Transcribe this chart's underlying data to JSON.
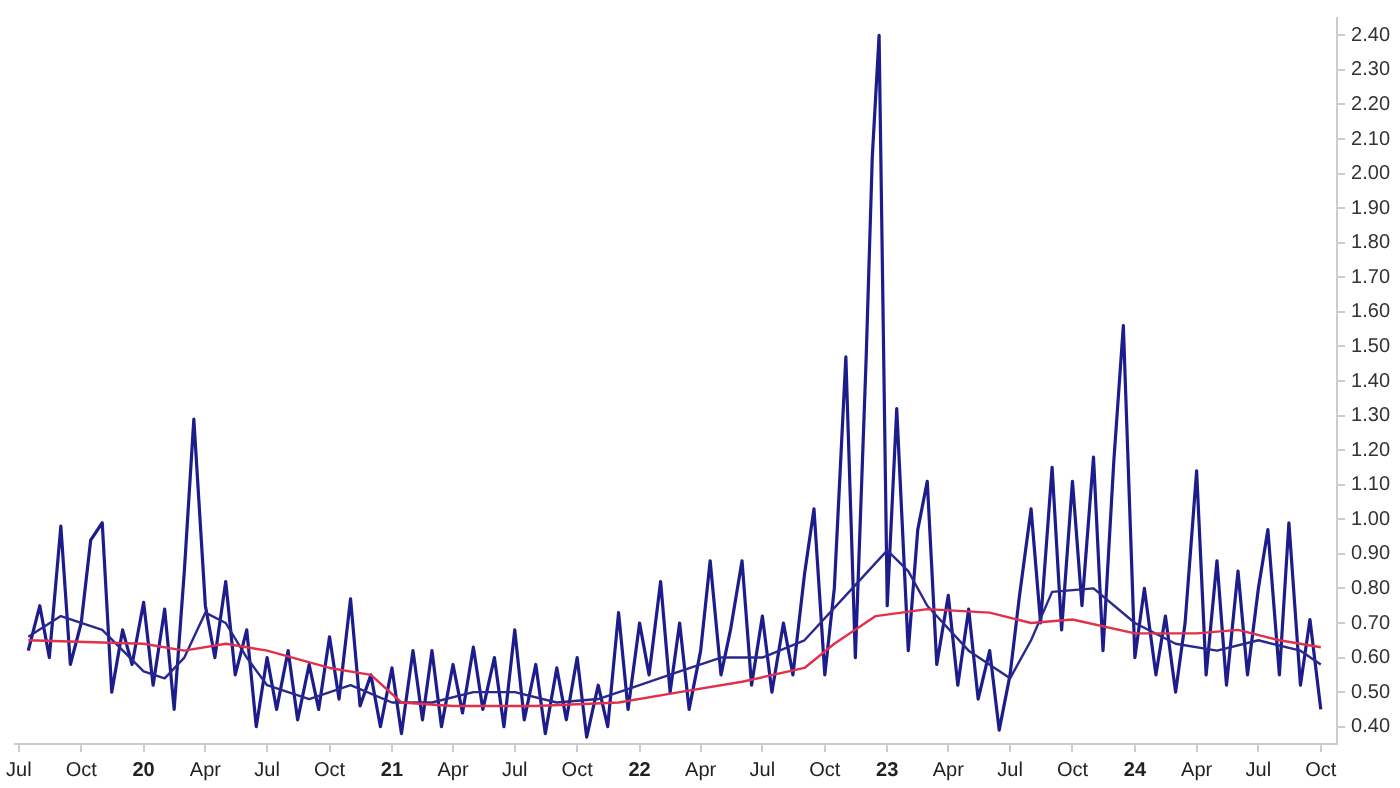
{
  "chart_data": {
    "type": "line",
    "xlim": [
      "2019-06-25",
      "2024-10-25"
    ],
    "ylim": [
      0.35,
      2.45
    ],
    "xticks": [
      {
        "value": "2019-07",
        "label": "Jul"
      },
      {
        "value": "2019-10",
        "label": "Oct"
      },
      {
        "value": "2020-01",
        "label": "20"
      },
      {
        "value": "2020-04",
        "label": "Apr"
      },
      {
        "value": "2020-07",
        "label": "Jul"
      },
      {
        "value": "2020-10",
        "label": "Oct"
      },
      {
        "value": "2021-01",
        "label": "21"
      },
      {
        "value": "2021-04",
        "label": "Apr"
      },
      {
        "value": "2021-07",
        "label": "Jul"
      },
      {
        "value": "2021-10",
        "label": "Oct"
      },
      {
        "value": "2022-01",
        "label": "22"
      },
      {
        "value": "2022-04",
        "label": "Apr"
      },
      {
        "value": "2022-07",
        "label": "Jul"
      },
      {
        "value": "2022-10",
        "label": "Oct"
      },
      {
        "value": "2023-01",
        "label": "23"
      },
      {
        "value": "2023-04",
        "label": "Apr"
      },
      {
        "value": "2023-07",
        "label": "Jul"
      },
      {
        "value": "2023-10",
        "label": "Oct"
      },
      {
        "value": "2024-01",
        "label": "24"
      },
      {
        "value": "2024-04",
        "label": "Apr"
      },
      {
        "value": "2024-07",
        "label": "Jul"
      },
      {
        "value": "2024-10",
        "label": "Oct"
      }
    ],
    "yticks": [
      {
        "value": 0.4,
        "label": "0.40"
      },
      {
        "value": 0.5,
        "label": "0.50"
      },
      {
        "value": 0.6,
        "label": "0.60"
      },
      {
        "value": 0.7,
        "label": "0.70"
      },
      {
        "value": 0.8,
        "label": "0.80"
      },
      {
        "value": 0.9,
        "label": "0.90"
      },
      {
        "value": 1.0,
        "label": "1.00"
      },
      {
        "value": 1.1,
        "label": "1.10"
      },
      {
        "value": 1.2,
        "label": "1.20"
      },
      {
        "value": 1.3,
        "label": "1.30"
      },
      {
        "value": 1.4,
        "label": "1.40"
      },
      {
        "value": 1.5,
        "label": "1.50"
      },
      {
        "value": 1.6,
        "label": "1.60"
      },
      {
        "value": 1.7,
        "label": "1.70"
      },
      {
        "value": 1.8,
        "label": "1.80"
      },
      {
        "value": 1.9,
        "label": "1.90"
      },
      {
        "value": 2.0,
        "label": "2.00"
      },
      {
        "value": 2.1,
        "label": "2.10"
      },
      {
        "value": 2.2,
        "label": "2.20"
      },
      {
        "value": 2.3,
        "label": "2.30"
      },
      {
        "value": 2.4,
        "label": "2.40"
      }
    ],
    "grid": false,
    "legend": false,
    "marker": "none",
    "line_style": "solid",
    "series": [
      {
        "color": "#1c1c8c",
        "x": [
          "2019-07-15",
          "2019-08-01",
          "2019-08-15",
          "2019-09-01",
          "2019-09-15",
          "2019-10-01",
          "2019-10-15",
          "2019-11-01",
          "2019-11-15",
          "2019-12-01",
          "2019-12-15",
          "2020-01-01",
          "2020-01-15",
          "2020-02-01",
          "2020-02-15",
          "2020-03-01",
          "2020-03-15",
          "2020-04-01",
          "2020-04-15",
          "2020-05-01",
          "2020-05-15",
          "2020-06-01",
          "2020-06-15",
          "2020-07-01",
          "2020-07-15",
          "2020-08-01",
          "2020-08-15",
          "2020-09-01",
          "2020-09-15",
          "2020-10-01",
          "2020-10-15",
          "2020-11-01",
          "2020-11-15",
          "2020-12-01",
          "2020-12-15",
          "2021-01-01",
          "2021-01-15",
          "2021-02-01",
          "2021-02-15",
          "2021-03-01",
          "2021-03-15",
          "2021-04-01",
          "2021-04-15",
          "2021-05-01",
          "2021-05-15",
          "2021-06-01",
          "2021-06-15",
          "2021-07-01",
          "2021-07-15",
          "2021-08-01",
          "2021-08-15",
          "2021-09-01",
          "2021-09-15",
          "2021-10-01",
          "2021-10-15",
          "2021-11-01",
          "2021-11-15",
          "2021-12-01",
          "2021-12-15",
          "2022-01-01",
          "2022-01-15",
          "2022-02-01",
          "2022-02-15",
          "2022-03-01",
          "2022-03-15",
          "2022-04-01",
          "2022-04-15",
          "2022-05-01",
          "2022-05-15",
          "2022-06-01",
          "2022-06-15",
          "2022-07-01",
          "2022-07-15",
          "2022-08-01",
          "2022-08-15",
          "2022-09-01",
          "2022-09-15",
          "2022-10-01",
          "2022-10-15",
          "2022-11-01",
          "2022-11-15",
          "2022-12-01",
          "2022-12-10",
          "2022-12-20",
          "2023-01-01",
          "2023-01-15",
          "2023-02-01",
          "2023-02-15",
          "2023-03-01",
          "2023-03-15",
          "2023-04-01",
          "2023-04-15",
          "2023-05-01",
          "2023-05-15",
          "2023-06-01",
          "2023-06-15",
          "2023-07-01",
          "2023-07-15",
          "2023-08-01",
          "2023-08-15",
          "2023-09-01",
          "2023-09-15",
          "2023-10-01",
          "2023-10-15",
          "2023-11-01",
          "2023-11-15",
          "2023-12-01",
          "2023-12-15",
          "2024-01-01",
          "2024-01-15",
          "2024-02-01",
          "2024-02-15",
          "2024-03-01",
          "2024-03-15",
          "2024-04-01",
          "2024-04-15",
          "2024-05-01",
          "2024-05-15",
          "2024-06-01",
          "2024-06-15",
          "2024-07-01",
          "2024-07-15",
          "2024-08-01",
          "2024-08-15",
          "2024-09-01",
          "2024-09-15",
          "2024-10-01"
        ],
        "values": [
          0.62,
          0.75,
          0.6,
          0.98,
          0.58,
          0.7,
          0.94,
          0.99,
          0.5,
          0.68,
          0.58,
          0.76,
          0.52,
          0.74,
          0.45,
          0.85,
          1.29,
          0.75,
          0.6,
          0.82,
          0.55,
          0.68,
          0.4,
          0.6,
          0.45,
          0.62,
          0.42,
          0.58,
          0.45,
          0.66,
          0.48,
          0.77,
          0.46,
          0.55,
          0.4,
          0.57,
          0.38,
          0.62,
          0.42,
          0.62,
          0.4,
          0.58,
          0.44,
          0.63,
          0.45,
          0.6,
          0.4,
          0.68,
          0.42,
          0.58,
          0.38,
          0.57,
          0.42,
          0.6,
          0.37,
          0.52,
          0.4,
          0.73,
          0.45,
          0.7,
          0.55,
          0.82,
          0.5,
          0.7,
          0.45,
          0.62,
          0.88,
          0.55,
          0.68,
          0.88,
          0.52,
          0.72,
          0.5,
          0.7,
          0.55,
          0.84,
          1.03,
          0.55,
          0.8,
          1.47,
          0.6,
          1.47,
          2.05,
          2.4,
          0.75,
          1.32,
          0.62,
          0.97,
          1.11,
          0.58,
          0.78,
          0.52,
          0.74,
          0.48,
          0.62,
          0.39,
          0.55,
          0.78,
          1.03,
          0.7,
          1.15,
          0.68,
          1.11,
          0.75,
          1.18,
          0.62,
          1.17,
          1.56,
          0.6,
          0.8,
          0.55,
          0.72,
          0.5,
          0.7,
          1.14,
          0.55,
          0.88,
          0.52,
          0.85,
          0.55,
          0.8,
          0.97,
          0.55,
          0.99,
          0.52,
          0.71,
          0.45
        ]
      },
      {
        "color": "#28288f",
        "x": [
          "2019-07-15",
          "2019-09-01",
          "2019-11-01",
          "2020-01-01",
          "2020-02-01",
          "2020-03-01",
          "2020-04-01",
          "2020-05-01",
          "2020-06-01",
          "2020-07-01",
          "2020-09-01",
          "2020-11-01",
          "2021-01-01",
          "2021-03-01",
          "2021-05-01",
          "2021-07-01",
          "2021-09-01",
          "2021-11-01",
          "2022-01-01",
          "2022-03-01",
          "2022-05-01",
          "2022-07-01",
          "2022-09-01",
          "2022-11-01",
          "2023-01-01",
          "2023-02-01",
          "2023-03-01",
          "2023-05-01",
          "2023-07-01",
          "2023-08-01",
          "2023-09-01",
          "2023-11-01",
          "2024-01-01",
          "2024-03-01",
          "2024-05-01",
          "2024-07-01",
          "2024-09-01",
          "2024-10-01"
        ],
        "values": [
          0.66,
          0.72,
          0.68,
          0.56,
          0.54,
          0.6,
          0.73,
          0.7,
          0.6,
          0.52,
          0.48,
          0.52,
          0.47,
          0.47,
          0.5,
          0.5,
          0.47,
          0.48,
          0.52,
          0.56,
          0.6,
          0.6,
          0.65,
          0.78,
          0.91,
          0.85,
          0.75,
          0.62,
          0.54,
          0.65,
          0.79,
          0.8,
          0.7,
          0.64,
          0.62,
          0.65,
          0.62,
          0.58
        ]
      },
      {
        "color": "#e0304a",
        "x": [
          "2019-07-15",
          "2020-01-01",
          "2020-03-01",
          "2020-05-01",
          "2020-07-01",
          "2020-10-01",
          "2020-12-01",
          "2021-01-15",
          "2021-04-01",
          "2021-08-01",
          "2021-12-01",
          "2022-03-01",
          "2022-06-01",
          "2022-09-01",
          "2022-10-15",
          "2022-12-15",
          "2023-03-01",
          "2023-06-01",
          "2023-08-01",
          "2023-10-01",
          "2024-01-01",
          "2024-04-01",
          "2024-06-01",
          "2024-08-01",
          "2024-10-01"
        ],
        "values": [
          0.65,
          0.64,
          0.62,
          0.64,
          0.62,
          0.57,
          0.55,
          0.47,
          0.46,
          0.46,
          0.47,
          0.5,
          0.53,
          0.57,
          0.64,
          0.72,
          0.74,
          0.73,
          0.7,
          0.71,
          0.67,
          0.67,
          0.68,
          0.65,
          0.63
        ]
      }
    ]
  }
}
